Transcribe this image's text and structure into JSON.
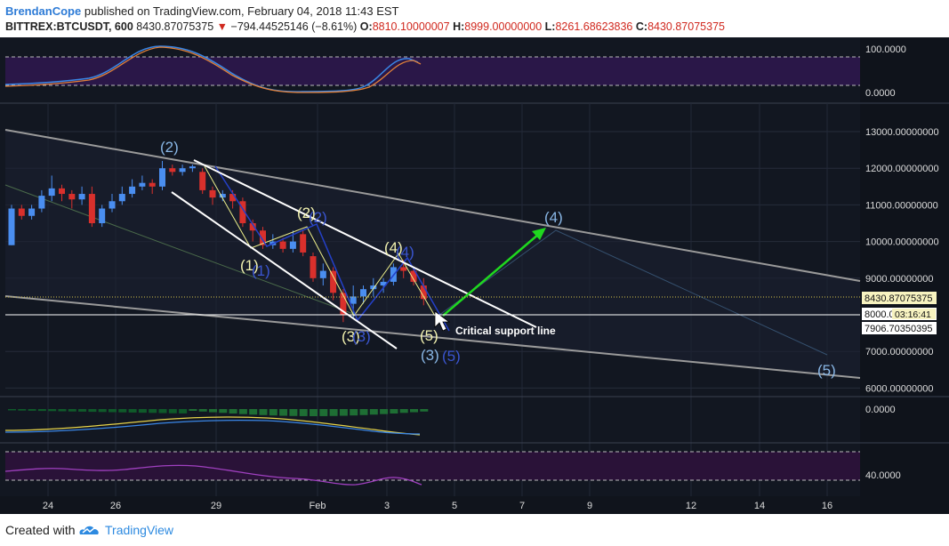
{
  "header": {
    "author": "BrendanCope",
    "published_text": "published on TradingView.com, February 04, 2018 11:43 EST",
    "symbol": "BITTREX:BTCUSDT, 600",
    "last": "8430.87075375",
    "change_arrow": "▼",
    "change": "−794.44525146 (−8.61%)",
    "o_label": "O:",
    "o": "8810.10000007",
    "h_label": "H:",
    "h": "8999.00000000",
    "l_label": "L:",
    "l": "8261.68623836",
    "c_label": "C:",
    "c": "8430.87075375"
  },
  "footer": {
    "created_with": "Created with",
    "brand": "TradingView"
  },
  "colors": {
    "background": "#121721",
    "up": "#4a8ef0",
    "down": "#d9302c",
    "wave_white": "#ffffff",
    "wave_yellow": "#eef08a",
    "wave_blue": "#2440c8",
    "label_light_blue": "#89b7e6",
    "label_yellow": "#f3f3b0",
    "arrow_green": "#1fd81f",
    "channel_gray": "#9a9a9a",
    "price_label_bg": "#f7f3c0",
    "rsi_band": "#2a1748",
    "stoch_band": "#2a1238"
  },
  "chart_data": {
    "type": "candlestick",
    "x_ticks": [
      "24",
      "26",
      "29",
      "Feb",
      "3",
      "5",
      "7",
      "9",
      "12",
      "14",
      "16"
    ],
    "y_ticks": [
      "13000.00000000",
      "12000.00000000",
      "11000.00000000",
      "10000.00000000",
      "9000.00000000",
      "8000.00000000",
      "7000.00000000",
      "6000.00000000"
    ],
    "ylim": [
      5800,
      13500
    ],
    "candles": [
      {
        "o": 9900,
        "c": 10900,
        "h": 11000,
        "l": 9900
      },
      {
        "o": 10900,
        "c": 10700,
        "h": 11000,
        "l": 10600
      },
      {
        "o": 10700,
        "c": 10900,
        "h": 11000,
        "l": 10600
      },
      {
        "o": 10900,
        "c": 11250,
        "h": 11400,
        "l": 10800
      },
      {
        "o": 11250,
        "c": 11450,
        "h": 11800,
        "l": 11100
      },
      {
        "o": 11450,
        "c": 11300,
        "h": 11550,
        "l": 11100
      },
      {
        "o": 11300,
        "c": 11150,
        "h": 11400,
        "l": 10900
      },
      {
        "o": 11150,
        "c": 11300,
        "h": 11500,
        "l": 11000
      },
      {
        "o": 11300,
        "c": 10500,
        "h": 11500,
        "l": 10400
      },
      {
        "o": 10500,
        "c": 10900,
        "h": 11000,
        "l": 10400
      },
      {
        "o": 10900,
        "c": 11100,
        "h": 11300,
        "l": 10800
      },
      {
        "o": 11100,
        "c": 11300,
        "h": 11500,
        "l": 11000
      },
      {
        "o": 11300,
        "c": 11500,
        "h": 11700,
        "l": 11200
      },
      {
        "o": 11500,
        "c": 11600,
        "h": 11800,
        "l": 11400
      },
      {
        "o": 11600,
        "c": 11500,
        "h": 11700,
        "l": 11300
      },
      {
        "o": 11500,
        "c": 12000,
        "h": 12200,
        "l": 11400
      },
      {
        "o": 12000,
        "c": 11900,
        "h": 12100,
        "l": 11800
      },
      {
        "o": 11900,
        "c": 12000,
        "h": 12100,
        "l": 11800
      },
      {
        "o": 12000,
        "c": 12050,
        "h": 12100,
        "l": 11900
      },
      {
        "o": 11900,
        "c": 11400,
        "h": 12000,
        "l": 11300
      },
      {
        "o": 11400,
        "c": 11200,
        "h": 11500,
        "l": 11000
      },
      {
        "o": 11200,
        "c": 11300,
        "h": 11400,
        "l": 11100
      },
      {
        "o": 11300,
        "c": 11100,
        "h": 11400,
        "l": 10900
      },
      {
        "o": 11100,
        "c": 10500,
        "h": 11200,
        "l": 10400
      },
      {
        "o": 10500,
        "c": 10300,
        "h": 10600,
        "l": 10000
      },
      {
        "o": 10300,
        "c": 9900,
        "h": 10400,
        "l": 9800
      },
      {
        "o": 9900,
        "c": 10000,
        "h": 10200,
        "l": 9800
      },
      {
        "o": 10000,
        "c": 9800,
        "h": 10100,
        "l": 9700
      },
      {
        "o": 9800,
        "c": 10000,
        "h": 10300,
        "l": 9700
      },
      {
        "o": 10200,
        "c": 9700,
        "h": 10300,
        "l": 9600
      },
      {
        "o": 9600,
        "c": 9000,
        "h": 9700,
        "l": 8900
      },
      {
        "o": 9000,
        "c": 9200,
        "h": 9400,
        "l": 8800
      },
      {
        "o": 9200,
        "c": 8600,
        "h": 9300,
        "l": 8400
      },
      {
        "o": 8600,
        "c": 8000,
        "h": 8700,
        "l": 7800
      },
      {
        "o": 8300,
        "c": 8500,
        "h": 8800,
        "l": 7900
      },
      {
        "o": 8500,
        "c": 8700,
        "h": 8800,
        "l": 8300
      },
      {
        "o": 8700,
        "c": 8800,
        "h": 9000,
        "l": 8500
      },
      {
        "o": 8800,
        "c": 8900,
        "h": 9000,
        "l": 8600
      },
      {
        "o": 8900,
        "c": 9300,
        "h": 9400,
        "l": 8800
      },
      {
        "o": 9300,
        "c": 9200,
        "h": 9500,
        "l": 9000
      },
      {
        "o": 9200,
        "c": 8900,
        "h": 9300,
        "l": 8800
      },
      {
        "o": 8800,
        "c": 8430,
        "h": 9000,
        "l": 8260
      }
    ],
    "price_labels": {
      "last_price": "8430.87075375",
      "level_price": "8000.0",
      "countdown": "03:16:41",
      "low_price": "7906.70350395"
    },
    "wave_labels": [
      "(2)",
      "(1)",
      "(1)",
      "(2)",
      "(2)",
      "(3)",
      "(3)",
      "(4)",
      "(4)",
      "(5)",
      "(3)",
      "(5)",
      "(4)",
      "(5)"
    ],
    "annotation": "Critical support line",
    "rsi": {
      "ticks": [
        "100.0000",
        "0.0000"
      ]
    },
    "macd": {
      "ticks": [
        "0.0000"
      ]
    },
    "stoch_rsi": {
      "ticks": [
        "40.0000"
      ]
    }
  }
}
